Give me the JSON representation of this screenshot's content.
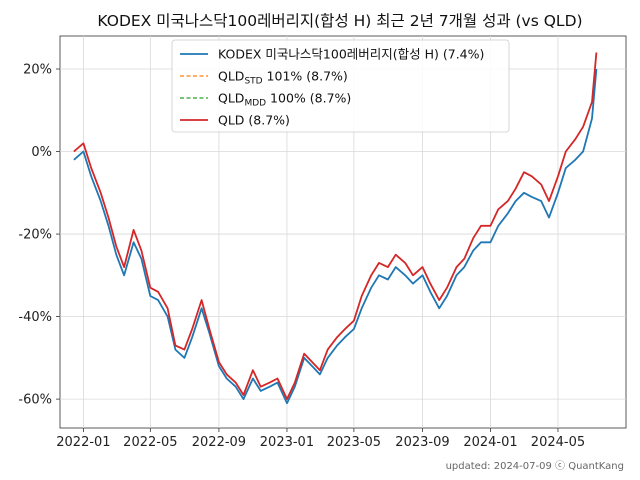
{
  "chart_data": {
    "type": "line",
    "title": "KODEX 미국나스닥100레버리지(합성 H) 최근 2년 7개월 성과 (vs QLD)",
    "xlabel": "",
    "ylabel": "",
    "x_tick_labels": [
      "2022-01",
      "2022-05",
      "2022-09",
      "2023-01",
      "2023-05",
      "2023-09",
      "2024-01",
      "2024-05"
    ],
    "y_tick_labels": [
      "20%",
      "0%",
      "-20%",
      "-40%",
      "-60%"
    ],
    "y_ticks": [
      20,
      0,
      -20,
      -40,
      -60
    ],
    "ylim": [
      -67,
      28
    ],
    "grid": true,
    "legend_position": "top-center",
    "x": [
      "2021-12-15",
      "2022-01-01",
      "2022-01-15",
      "2022-02-01",
      "2022-02-15",
      "2022-03-01",
      "2022-03-15",
      "2022-04-01",
      "2022-04-15",
      "2022-05-01",
      "2022-05-15",
      "2022-06-01",
      "2022-06-15",
      "2022-07-01",
      "2022-07-15",
      "2022-08-01",
      "2022-08-15",
      "2022-09-01",
      "2022-09-15",
      "2022-10-01",
      "2022-10-15",
      "2022-11-01",
      "2022-11-15",
      "2022-12-01",
      "2022-12-15",
      "2023-01-01",
      "2023-01-15",
      "2023-02-01",
      "2023-02-15",
      "2023-03-01",
      "2023-03-15",
      "2023-04-01",
      "2023-04-15",
      "2023-05-01",
      "2023-05-15",
      "2023-06-01",
      "2023-06-15",
      "2023-07-01",
      "2023-07-15",
      "2023-08-01",
      "2023-08-15",
      "2023-09-01",
      "2023-09-15",
      "2023-10-01",
      "2023-10-15",
      "2023-11-01",
      "2023-11-15",
      "2023-12-01",
      "2023-12-15",
      "2024-01-01",
      "2024-01-15",
      "2024-02-01",
      "2024-02-15",
      "2024-03-01",
      "2024-03-15",
      "2024-04-01",
      "2024-04-15",
      "2024-05-01",
      "2024-05-15",
      "2024-06-01",
      "2024-06-15",
      "2024-07-01",
      "2024-07-09"
    ],
    "series": [
      {
        "name": "KODEX 미국나스닥100레버리지(합성 H)  (7.4%)",
        "color": "#1f77b4",
        "dash": "solid",
        "values": [
          -2,
          0,
          -6,
          -12,
          -18,
          -25,
          -30,
          -22,
          -26,
          -35,
          -36,
          -40,
          -48,
          -50,
          -45,
          -38,
          -44,
          -52,
          -55,
          -57,
          -60,
          -55,
          -58,
          -57,
          -56,
          -61,
          -57,
          -50,
          -52,
          -54,
          -50,
          -47,
          -45,
          -43,
          -38,
          -33,
          -30,
          -31,
          -28,
          -30,
          -32,
          -30,
          -34,
          -38,
          -35,
          -30,
          -28,
          -24,
          -22,
          -22,
          -18,
          -15,
          -12,
          -10,
          -11,
          -12,
          -16,
          -10,
          -4,
          -2,
          0,
          8,
          20
        ]
      },
      {
        "name": "QLDSTD 101% (8.7%)",
        "name_main": "QLD",
        "name_sub": "STD",
        "name_suffix": " 101% (8.7%)",
        "color": "#ff7f0e",
        "dash": "dashed",
        "values": [
          0,
          2,
          -4,
          -10,
          -16,
          -23,
          -28,
          -19,
          -24,
          -33,
          -34,
          -38,
          -47,
          -48,
          -43,
          -36,
          -43,
          -51,
          -54,
          -56,
          -59,
          -53,
          -57,
          -56,
          -55,
          -60,
          -56,
          -49,
          -51,
          -53,
          -48,
          -45,
          -43,
          -41,
          -35,
          -30,
          -27,
          -28,
          -25,
          -27,
          -30,
          -28,
          -32,
          -36,
          -33,
          -28,
          -26,
          -21,
          -18,
          -18,
          -14,
          -12,
          -9,
          -5,
          -6,
          -8,
          -12,
          -6,
          0,
          3,
          6,
          12,
          24
        ]
      },
      {
        "name": "QLDMDD 100% (8.7%)",
        "name_main": "QLD",
        "name_sub": "MDD",
        "name_suffix": " 100% (8.7%)",
        "color": "#2ca02c",
        "dash": "dashed",
        "values": [
          0,
          2,
          -4,
          -10,
          -16,
          -23,
          -28,
          -19,
          -24,
          -33,
          -34,
          -38,
          -47,
          -48,
          -43,
          -36,
          -43,
          -51,
          -54,
          -56,
          -59,
          -53,
          -57,
          -56,
          -55,
          -60,
          -56,
          -49,
          -51,
          -53,
          -48,
          -45,
          -43,
          -41,
          -35,
          -30,
          -27,
          -28,
          -25,
          -27,
          -30,
          -28,
          -32,
          -36,
          -33,
          -28,
          -26,
          -21,
          -18,
          -18,
          -14,
          -12,
          -9,
          -5,
          -6,
          -8,
          -12,
          -6,
          0,
          3,
          6,
          12,
          24
        ]
      },
      {
        "name": "QLD (8.7%)",
        "color": "#d62728",
        "dash": "solid",
        "values": [
          0,
          2,
          -4,
          -10,
          -16,
          -23,
          -28,
          -19,
          -24,
          -33,
          -34,
          -38,
          -47,
          -48,
          -43,
          -36,
          -43,
          -51,
          -54,
          -56,
          -59,
          -53,
          -57,
          -56,
          -55,
          -60,
          -56,
          -49,
          -51,
          -53,
          -48,
          -45,
          -43,
          -41,
          -35,
          -30,
          -27,
          -28,
          -25,
          -27,
          -30,
          -28,
          -32,
          -36,
          -33,
          -28,
          -26,
          -21,
          -18,
          -18,
          -14,
          -12,
          -9,
          -5,
          -6,
          -8,
          -12,
          -6,
          0,
          3,
          6,
          12,
          24
        ]
      }
    ],
    "footer": "updated: 2024-07-09 ⓒ QuantKang"
  }
}
